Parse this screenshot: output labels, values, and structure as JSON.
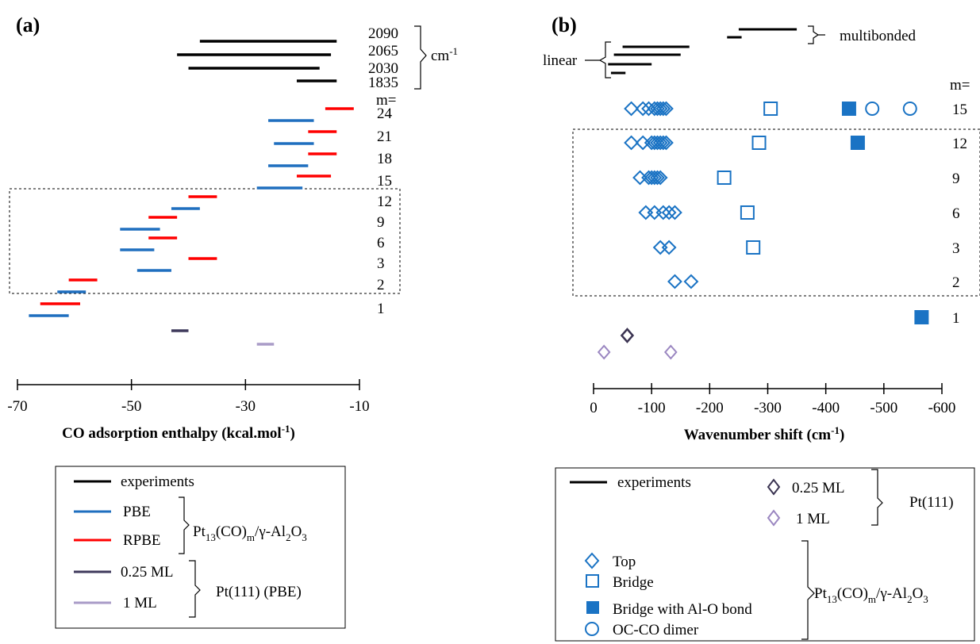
{
  "panels": {
    "a": "(a)",
    "b": "(b)"
  },
  "colors": {
    "experiments": "#000000",
    "PBE": "#1f6fbf",
    "RPBE": "#ff0000",
    "ML025": "#3f3a5c",
    "ML1": "#a99bc7",
    "marker": "#1a73c4",
    "markerML025": "#3b3452",
    "markerML1": "#9b87c1"
  },
  "panel_a": {
    "xlabel": "CO adsorption enthalpy (kcal.mol",
    "xlabel_sup": "-1",
    "xlabel_end": ")",
    "ticks": [
      "-70",
      "-50",
      "-30",
      "-10"
    ],
    "exp_labels": [
      "2090",
      "2065",
      "2030",
      "1835"
    ],
    "exp_unit": "cm",
    "exp_unit_sup": "-1",
    "m_header": "m=",
    "m_labels": [
      "24",
      "21",
      "18",
      "15",
      "12",
      "9",
      "6",
      "3",
      "2",
      "1"
    ],
    "legend": {
      "experiments": "experiments",
      "PBE": "PBE",
      "RPBE": "RPBE",
      "system": "Pt13(CO)m/γ-Al2O3",
      "ml025": "0.25 ML",
      "ml1": "1 ML",
      "pt111": "Pt(111) (PBE)"
    }
  },
  "panel_b": {
    "xlabel": "Wavenumber shift (cm",
    "xlabel_sup": "-1",
    "xlabel_end": ")",
    "ticks": [
      "0",
      "-100",
      "-200",
      "-300",
      "-400",
      "-500",
      "-600"
    ],
    "linear_label": "linear",
    "multibonded_label": "multibonded",
    "m_header": "m=",
    "m_labels": [
      "15",
      "12",
      "9",
      "6",
      "3",
      "2",
      "1"
    ],
    "legend": {
      "experiments": "experiments",
      "ml025": "0.25 ML",
      "ml1": "1 ML",
      "pt111": "Pt(111)",
      "top": "Top",
      "bridge": "Bridge",
      "bridge_alo": "Bridge with Al-O bond",
      "dimer": "OC-CO dimer",
      "system": "Pt13(CO)m/γ-Al2O3"
    }
  },
  "chart_data": [
    {
      "type": "range",
      "panel": "a",
      "xlabel": "CO adsorption enthalpy (kcal.mol-1)",
      "xlim": [
        -70,
        -10
      ],
      "experiments": [
        [
          -38,
          -14
        ],
        [
          -42,
          -15
        ],
        [
          -40,
          -17
        ],
        [
          -21,
          -14
        ]
      ],
      "series": [
        {
          "name": "PBE",
          "rows": [
            {
              "m": "24",
              "x": [
                -26,
                -18
              ]
            },
            {
              "m": "21",
              "x": [
                -25,
                -18
              ]
            },
            {
              "m": "18",
              "x": [
                -26,
                -19
              ]
            },
            {
              "m": "15",
              "x": [
                -28,
                -20
              ]
            },
            {
              "m": "12",
              "x": [
                -43,
                -38
              ]
            },
            {
              "m": "9",
              "x": [
                -52,
                -45
              ]
            },
            {
              "m": "6",
              "x": [
                -52,
                -46
              ]
            },
            {
              "m": "3",
              "x": [
                -49,
                -43
              ]
            },
            {
              "m": "2",
              "x": [
                -63,
                -58
              ]
            },
            {
              "m": "1",
              "x": [
                -68,
                -61
              ]
            }
          ]
        },
        {
          "name": "RPBE",
          "rows": [
            {
              "m": "24",
              "x": [
                -16,
                -11
              ]
            },
            {
              "m": "21",
              "x": [
                -19,
                -14
              ]
            },
            {
              "m": "18",
              "x": [
                -19,
                -14
              ]
            },
            {
              "m": "15",
              "x": [
                -21,
                -15
              ]
            },
            {
              "m": "12",
              "x": [
                -40,
                -35
              ]
            },
            {
              "m": "9",
              "x": [
                -47,
                -42
              ]
            },
            {
              "m": "6",
              "x": [
                -47,
                -42
              ]
            },
            {
              "m": "3",
              "x": [
                -40,
                -35
              ]
            },
            {
              "m": "2",
              "x": [
                -61,
                -56
              ]
            },
            {
              "m": "1",
              "x": [
                -66,
                -59
              ]
            }
          ]
        },
        {
          "name": "0.25 ML",
          "rows": [
            {
              "x": [
                -43,
                -40
              ]
            }
          ]
        },
        {
          "name": "1 ML",
          "rows": [
            {
              "x": [
                -28,
                -25
              ]
            }
          ]
        }
      ]
    },
    {
      "type": "scatter",
      "panel": "b",
      "xlabel": "Wavenumber shift (cm-1)",
      "xlim": [
        0,
        -600
      ],
      "experiments": {
        "linear": [
          [
            -50,
            -165
          ],
          [
            -35,
            -150
          ],
          [
            -25,
            -100
          ],
          [
            -30,
            -55
          ]
        ],
        "multibonded": [
          [
            -250,
            -350
          ],
          [
            -230,
            -255
          ]
        ]
      },
      "series": [
        {
          "name": "Top",
          "points": [
            {
              "m": "15",
              "x": [
                -65,
                -85,
                -95,
                -105,
                -110,
                -115,
                -120,
                -125
              ]
            },
            {
              "m": "12",
              "x": [
                -65,
                -85,
                -100,
                -105,
                -110,
                -115,
                -120,
                -125
              ]
            },
            {
              "m": "9",
              "x": [
                -80,
                -95,
                -100,
                -105,
                -110,
                -115
              ]
            },
            {
              "m": "6",
              "x": [
                -90,
                -105,
                -120,
                -130,
                -140
              ]
            },
            {
              "m": "3",
              "x": [
                -115,
                -130
              ]
            },
            {
              "m": "2",
              "x": [
                -140,
                -168
              ]
            }
          ]
        },
        {
          "name": "Bridge",
          "points": [
            {
              "m": "15",
              "x": [
                -305
              ]
            },
            {
              "m": "12",
              "x": [
                -285
              ]
            },
            {
              "m": "9",
              "x": [
                -225
              ]
            },
            {
              "m": "6",
              "x": [
                -265
              ]
            },
            {
              "m": "3",
              "x": [
                -275
              ]
            }
          ]
        },
        {
          "name": "Bridge with Al-O bond",
          "points": [
            {
              "m": "15",
              "x": [
                -440
              ]
            },
            {
              "m": "12",
              "x": [
                -455
              ]
            },
            {
              "m": "1",
              "x": [
                -565
              ]
            }
          ]
        },
        {
          "name": "OC-CO dimer",
          "points": [
            {
              "m": "15",
              "x": [
                -480,
                -545
              ]
            }
          ]
        },
        {
          "name": "0.25 ML",
          "points": [
            {
              "x": [
                -58
              ]
            }
          ]
        },
        {
          "name": "1 ML",
          "points": [
            {
              "x": [
                -18,
                -133
              ]
            }
          ]
        }
      ]
    }
  ]
}
